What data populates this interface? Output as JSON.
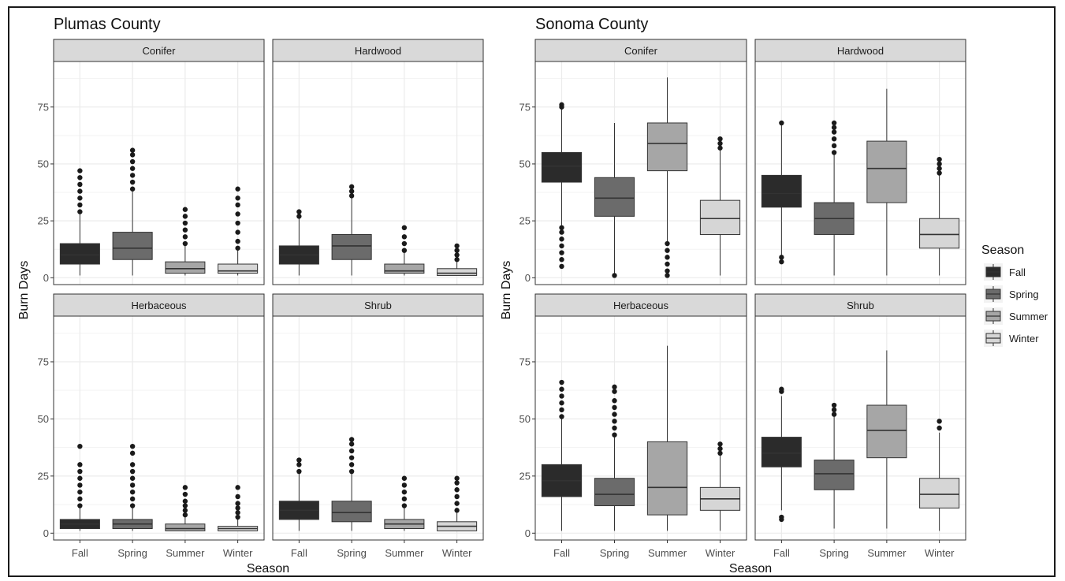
{
  "colors": {
    "Fall": "#2b2b2b",
    "Spring": "#6b6b6b",
    "Summer": "#a6a6a6",
    "Winter": "#d6d6d6",
    "strip": "#d9d9d9",
    "grid": "#ebebeb"
  },
  "legend": {
    "title": "Season",
    "items": [
      "Fall",
      "Spring",
      "Summer",
      "Winter"
    ]
  },
  "chart_data": [
    {
      "type": "boxplot",
      "title": "Plumas County",
      "xlabel": "Season",
      "ylabel": "Burn Days",
      "categories": [
        "Fall",
        "Spring",
        "Summer",
        "Winter"
      ],
      "ylim": [
        -3,
        95
      ],
      "yticks": [
        0,
        25,
        50,
        75
      ],
      "facets": [
        {
          "label": "Conifer",
          "boxes": [
            {
              "season": "Fall",
              "lower": 1,
              "q1": 6,
              "median": 10,
              "q3": 15,
              "upper": 28,
              "outliers": [
                29,
                32,
                35,
                38,
                41,
                44,
                47
              ]
            },
            {
              "season": "Spring",
              "lower": 1,
              "q1": 8,
              "median": 13,
              "q3": 20,
              "upper": 38,
              "outliers": [
                39,
                42,
                45,
                48,
                51,
                54,
                56
              ]
            },
            {
              "season": "Summer",
              "lower": 1,
              "q1": 2,
              "median": 4,
              "q3": 7,
              "upper": 14,
              "outliers": [
                15,
                18,
                21,
                24,
                27,
                30
              ]
            },
            {
              "season": "Winter",
              "lower": 1,
              "q1": 2,
              "median": 3,
              "q3": 6,
              "upper": 12,
              "outliers": [
                13,
                16,
                20,
                24,
                28,
                32,
                35,
                39
              ]
            }
          ]
        },
        {
          "label": "Hardwood",
          "boxes": [
            {
              "season": "Fall",
              "lower": 1,
              "q1": 6,
              "median": 10,
              "q3": 14,
              "upper": 26,
              "outliers": [
                27,
                29
              ]
            },
            {
              "season": "Spring",
              "lower": 1,
              "q1": 8,
              "median": 14,
              "q3": 19,
              "upper": 35,
              "outliers": [
                36,
                38,
                40
              ]
            },
            {
              "season": "Summer",
              "lower": 1,
              "q1": 2,
              "median": 3,
              "q3": 6,
              "upper": 11,
              "outliers": [
                12,
                15,
                18,
                22
              ]
            },
            {
              "season": "Winter",
              "lower": 1,
              "q1": 1,
              "median": 2,
              "q3": 4,
              "upper": 7,
              "outliers": [
                8,
                10,
                12,
                14
              ]
            }
          ]
        },
        {
          "label": "Herbaceous",
          "boxes": [
            {
              "season": "Fall",
              "lower": 1,
              "q1": 2,
              "median": 4,
              "q3": 6,
              "upper": 11,
              "outliers": [
                12,
                15,
                18,
                21,
                24,
                27,
                30,
                38
              ]
            },
            {
              "season": "Spring",
              "lower": 1,
              "q1": 2,
              "median": 4,
              "q3": 6,
              "upper": 11,
              "outliers": [
                12,
                15,
                18,
                21,
                24,
                27,
                30,
                35,
                38
              ]
            },
            {
              "season": "Summer",
              "lower": 1,
              "q1": 1,
              "median": 2,
              "q3": 4,
              "upper": 7,
              "outliers": [
                8,
                10,
                12,
                14,
                17,
                20
              ]
            },
            {
              "season": "Winter",
              "lower": 1,
              "q1": 1,
              "median": 2,
              "q3": 3,
              "upper": 6,
              "outliers": [
                7,
                9,
                11,
                13,
                16,
                20
              ]
            }
          ]
        },
        {
          "label": "Shrub",
          "boxes": [
            {
              "season": "Fall",
              "lower": 1,
              "q1": 6,
              "median": 10,
              "q3": 14,
              "upper": 26,
              "outliers": [
                27,
                30,
                32
              ]
            },
            {
              "season": "Spring",
              "lower": 1,
              "q1": 5,
              "median": 9,
              "q3": 14,
              "upper": 26,
              "outliers": [
                27,
                30,
                33,
                36,
                39,
                41
              ]
            },
            {
              "season": "Summer",
              "lower": 1,
              "q1": 2,
              "median": 4,
              "q3": 6,
              "upper": 11,
              "outliers": [
                12,
                15,
                18,
                21,
                24
              ]
            },
            {
              "season": "Winter",
              "lower": 1,
              "q1": 1,
              "median": 3,
              "q3": 5,
              "upper": 9,
              "outliers": [
                10,
                13,
                16,
                19,
                22,
                24
              ]
            }
          ]
        }
      ]
    },
    {
      "type": "boxplot",
      "title": "Sonoma County",
      "xlabel": "Season",
      "ylabel": "Burn Days",
      "categories": [
        "Fall",
        "Spring",
        "Summer",
        "Winter"
      ],
      "ylim": [
        -3,
        95
      ],
      "yticks": [
        0,
        25,
        50,
        75
      ],
      "facets": [
        {
          "label": "Conifer",
          "boxes": [
            {
              "season": "Fall",
              "lower": 23,
              "q1": 42,
              "median": 49,
              "q3": 55,
              "upper": 74,
              "outliers": [
                5,
                8,
                11,
                14,
                17,
                20,
                22,
                75,
                76
              ]
            },
            {
              "season": "Spring",
              "lower": 2,
              "q1": 27,
              "median": 35,
              "q3": 44,
              "upper": 68,
              "outliers": [
                1
              ]
            },
            {
              "season": "Summer",
              "lower": 16,
              "q1": 47,
              "median": 59,
              "q3": 68,
              "upper": 88,
              "outliers": [
                1,
                3,
                6,
                9,
                12,
                15
              ]
            },
            {
              "season": "Winter",
              "lower": 1,
              "q1": 19,
              "median": 26,
              "q3": 34,
              "upper": 56,
              "outliers": [
                57,
                59,
                61
              ]
            }
          ]
        },
        {
          "label": "Hardwood",
          "boxes": [
            {
              "season": "Fall",
              "lower": 10,
              "q1": 31,
              "median": 37,
              "q3": 45,
              "upper": 67,
              "outliers": [
                7,
                9,
                68
              ]
            },
            {
              "season": "Spring",
              "lower": 1,
              "q1": 19,
              "median": 26,
              "q3": 33,
              "upper": 54,
              "outliers": [
                55,
                58,
                61,
                64,
                66,
                68
              ]
            },
            {
              "season": "Summer",
              "lower": 1,
              "q1": 33,
              "median": 48,
              "q3": 60,
              "upper": 83,
              "outliers": []
            },
            {
              "season": "Winter",
              "lower": 1,
              "q1": 13,
              "median": 19,
              "q3": 26,
              "upper": 45,
              "outliers": [
                46,
                48,
                50,
                52
              ]
            }
          ]
        },
        {
          "label": "Herbaceous",
          "boxes": [
            {
              "season": "Fall",
              "lower": 1,
              "q1": 16,
              "median": 23,
              "q3": 30,
              "upper": 50,
              "outliers": [
                51,
                54,
                57,
                60,
                63,
                66
              ]
            },
            {
              "season": "Spring",
              "lower": 1,
              "q1": 12,
              "median": 17,
              "q3": 24,
              "upper": 42,
              "outliers": [
                43,
                46,
                49,
                52,
                55,
                58,
                62,
                64
              ]
            },
            {
              "season": "Summer",
              "lower": 1,
              "q1": 8,
              "median": 20,
              "q3": 40,
              "upper": 82,
              "outliers": []
            },
            {
              "season": "Winter",
              "lower": 1,
              "q1": 10,
              "median": 15,
              "q3": 20,
              "upper": 34,
              "outliers": [
                35,
                37,
                39
              ]
            }
          ]
        },
        {
          "label": "Shrub",
          "boxes": [
            {
              "season": "Fall",
              "lower": 10,
              "q1": 29,
              "median": 35,
              "q3": 42,
              "upper": 60,
              "outliers": [
                6,
                7,
                62,
                63
              ]
            },
            {
              "season": "Spring",
              "lower": 2,
              "q1": 19,
              "median": 26,
              "q3": 32,
              "upper": 51,
              "outliers": [
                52,
                54,
                56
              ]
            },
            {
              "season": "Summer",
              "lower": 2,
              "q1": 33,
              "median": 45,
              "q3": 56,
              "upper": 80,
              "outliers": []
            },
            {
              "season": "Winter",
              "lower": 1,
              "q1": 11,
              "median": 17,
              "q3": 24,
              "upper": 44,
              "outliers": [
                46,
                49
              ]
            }
          ]
        }
      ]
    }
  ]
}
